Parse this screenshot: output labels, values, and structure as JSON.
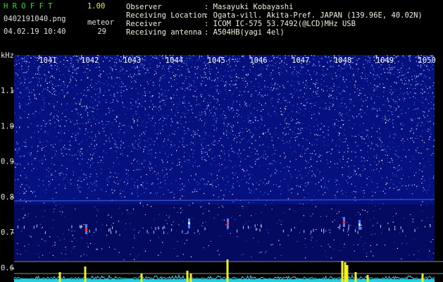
{
  "header": {
    "app": "H R O F F T",
    "version": "1.00",
    "file": "0402191040.png",
    "meteor_label": "meteor",
    "datetime": "04.02.19 10:40",
    "meteor_count": 29
  },
  "info": [
    {
      "label": "Observer",
      "value": ": Masayuki Kobayashi"
    },
    {
      "label": "Receiving Location",
      "value": ": Ogata-vill. Akita-Pref. JAPAN (139.96E, 40.02N)"
    },
    {
      "label": "Receiver",
      "value": ": ICOM IC-575 53.7492(@LCD)MHz USB"
    },
    {
      "label": "Receiving antenna",
      "value": ": A504HB(yagi 4el)"
    }
  ],
  "frequency_axis": {
    "unit": "kHz",
    "ticks": [
      "1.1",
      "1.0",
      "0.9",
      "0.8",
      "0.7",
      "0.6"
    ]
  },
  "time_axis": {
    "ticks": [
      "1041",
      "1042",
      "1043",
      "1044",
      "1045",
      "1046",
      "1047",
      "1048",
      "1049",
      "1050"
    ]
  }
}
